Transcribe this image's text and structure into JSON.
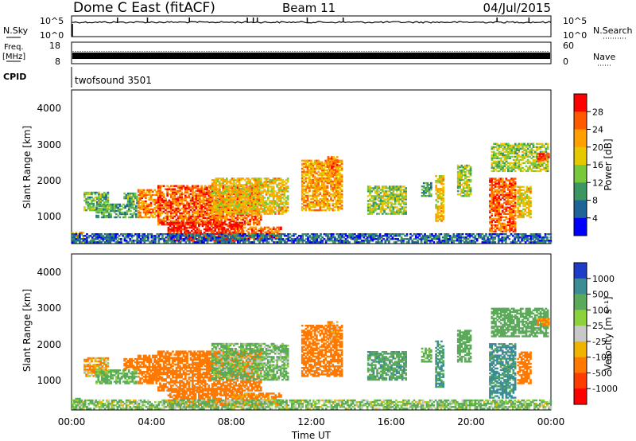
{
  "header": {
    "radar": "Dome C East (fitACF)",
    "beam": "Beam 11",
    "date": "04/Jul/2015"
  },
  "strips": {
    "nsky_label": "N.Sky",
    "nsky_ticks": [
      "10^5",
      "10^0"
    ],
    "nsearch_label": "N.Search",
    "freq_label_1": "Freq.",
    "freq_label_2": "[MHz]",
    "freq_ticks": [
      "18",
      "8"
    ],
    "nave_label": "Nave",
    "nave_ticks": [
      "60",
      "0"
    ],
    "cpid_label": "CPID",
    "cpid_value": "twofsound 3501"
  },
  "axes": {
    "ylabel": "Slant Range [km]",
    "xlabel": "Time UT",
    "yticks": [
      "4000",
      "3000",
      "2000",
      "1000"
    ],
    "xticks": [
      "00:00",
      "04:00",
      "08:00",
      "12:00",
      "16:00",
      "20:00",
      "00:00"
    ]
  },
  "colorbars": {
    "power": {
      "label": "Power [dB]",
      "ticks": [
        "28",
        "24",
        "20",
        "16",
        "12",
        "8",
        "4"
      ],
      "colors": [
        "#ff0000",
        "#ff5a00",
        "#ffa000",
        "#e6c800",
        "#78c83c",
        "#3c9664",
        "#1e6496",
        "#0000ff"
      ]
    },
    "velocity": {
      "label": "Velocity [m s⁻¹]",
      "ticks": [
        "1000",
        "500",
        "100",
        "25",
        "-25",
        "-100",
        "-500",
        "-1000"
      ],
      "colors": [
        "#1e3cc8",
        "#3c8c96",
        "#5aaa5a",
        "#8cd23c",
        "#c8c8c8",
        "#f0b400",
        "#ff7800",
        "#ff3c00",
        "#ff0000"
      ]
    }
  },
  "chart_data": [
    {
      "type": "line",
      "title": "N.Sky",
      "x_range": [
        0,
        24
      ],
      "y_scale": "log",
      "ylim": [
        1,
        100000
      ],
      "baseline": 3000,
      "spikes_x": [
        2.3,
        3.8,
        5.9,
        8.8,
        9.1,
        9.3,
        11.8,
        13.6,
        21.3,
        22.9
      ]
    },
    {
      "type": "line",
      "title": "Freq. [MHz]",
      "x_range": [
        0,
        24
      ],
      "ylim": [
        8,
        18
      ],
      "values": [
        10.5,
        11.5
      ]
    },
    {
      "type": "heatmap",
      "title": "Power [dB]",
      "xlabel": "Time UT",
      "ylabel": "Slant Range [km]",
      "x_range": [
        0,
        24
      ],
      "ylim": [
        180,
        4500
      ],
      "colorbar_range": [
        0,
        30
      ],
      "patches": [
        {
          "t": [
            0.6,
            1.8
          ],
          "r": [
            1100,
            1600
          ],
          "v": 12
        },
        {
          "t": [
            1.2,
            3.2
          ],
          "r": [
            900,
            1300
          ],
          "v": 10
        },
        {
          "t": [
            2.6,
            3.3
          ],
          "r": [
            1300,
            1600
          ],
          "v": 11
        },
        {
          "t": [
            3.3,
            4.4
          ],
          "r": [
            900,
            1700
          ],
          "v": 22
        },
        {
          "t": [
            4.3,
            9.5
          ],
          "r": [
            700,
            1800
          ],
          "v": 24
        },
        {
          "t": [
            7.0,
            10.8
          ],
          "r": [
            1000,
            2000
          ],
          "v": 18
        },
        {
          "t": [
            4.8,
            8.5
          ],
          "r": [
            250,
            750
          ],
          "v": 28
        },
        {
          "t": [
            8.0,
            10.5
          ],
          "r": [
            300,
            650
          ],
          "v": 24
        },
        {
          "t": [
            0.0,
            0.6
          ],
          "r": [
            200,
            500
          ],
          "v": 20
        },
        {
          "t": [
            11.5,
            13.5
          ],
          "r": [
            1100,
            2500
          ],
          "v": 20
        },
        {
          "t": [
            12.8,
            13.3
          ],
          "r": [
            2100,
            2600
          ],
          "v": 22
        },
        {
          "t": [
            14.8,
            16.7
          ],
          "r": [
            1000,
            1800
          ],
          "v": 14
        },
        {
          "t": [
            17.5,
            18.0
          ],
          "r": [
            1500,
            1900
          ],
          "v": 10
        },
        {
          "t": [
            18.2,
            18.6
          ],
          "r": [
            800,
            2100
          ],
          "v": 18
        },
        {
          "t": [
            19.3,
            20.0
          ],
          "r": [
            1500,
            2400
          ],
          "v": 14
        },
        {
          "t": [
            20.9,
            22.2
          ],
          "r": [
            500,
            2000
          ],
          "v": 24
        },
        {
          "t": [
            22.3,
            23.0
          ],
          "r": [
            900,
            1800
          ],
          "v": 18
        },
        {
          "t": [
            21.0,
            23.8
          ],
          "r": [
            2200,
            3000
          ],
          "v": 14
        },
        {
          "t": [
            23.3,
            23.9
          ],
          "r": [
            2500,
            2700
          ],
          "v": 26
        },
        {
          "t": [
            0.0,
            24.0
          ],
          "r": [
            200,
            450
          ],
          "v": 6
        }
      ]
    },
    {
      "type": "heatmap",
      "title": "Velocity [m s⁻¹]",
      "xlabel": "Time UT",
      "ylabel": "Slant Range [km]",
      "x_range": [
        0,
        24
      ],
      "ylim": [
        180,
        4500
      ],
      "colorbar_range": [
        -1000,
        1000
      ],
      "patches": [
        {
          "t": [
            0.6,
            1.8
          ],
          "r": [
            1100,
            1600
          ],
          "v": -100
        },
        {
          "t": [
            1.2,
            3.2
          ],
          "r": [
            900,
            1300
          ],
          "v": 200
        },
        {
          "t": [
            2.6,
            3.3
          ],
          "r": [
            1300,
            1600
          ],
          "v": -300
        },
        {
          "t": [
            3.3,
            4.4
          ],
          "r": [
            900,
            1700
          ],
          "v": -300
        },
        {
          "t": [
            4.3,
            9.5
          ],
          "r": [
            700,
            1800
          ],
          "v": -300
        },
        {
          "t": [
            7.0,
            10.8
          ],
          "r": [
            1000,
            2000
          ],
          "v": 150
        },
        {
          "t": [
            4.8,
            8.5
          ],
          "r": [
            250,
            750
          ],
          "v": -300
        },
        {
          "t": [
            8.0,
            10.5
          ],
          "r": [
            300,
            650
          ],
          "v": -200
        },
        {
          "t": [
            0.0,
            0.6
          ],
          "r": [
            200,
            500
          ],
          "v": 300
        },
        {
          "t": [
            11.5,
            13.5
          ],
          "r": [
            1100,
            2500
          ],
          "v": -300
        },
        {
          "t": [
            12.8,
            13.3
          ],
          "r": [
            2100,
            2600
          ],
          "v": -150
        },
        {
          "t": [
            14.8,
            16.7
          ],
          "r": [
            1000,
            1800
          ],
          "v": 400
        },
        {
          "t": [
            17.5,
            18.0
          ],
          "r": [
            1500,
            1900
          ],
          "v": 200
        },
        {
          "t": [
            18.2,
            18.6
          ],
          "r": [
            800,
            2100
          ],
          "v": 500
        },
        {
          "t": [
            19.3,
            20.0
          ],
          "r": [
            1500,
            2400
          ],
          "v": 300
        },
        {
          "t": [
            20.9,
            22.2
          ],
          "r": [
            500,
            2000
          ],
          "v": 600
        },
        {
          "t": [
            22.3,
            23.0
          ],
          "r": [
            900,
            1800
          ],
          "v": -300
        },
        {
          "t": [
            21.0,
            23.8
          ],
          "r": [
            2200,
            3000
          ],
          "v": 300
        },
        {
          "t": [
            23.3,
            23.9
          ],
          "r": [
            2500,
            2700
          ],
          "v": -200
        },
        {
          "t": [
            0.0,
            24.0
          ],
          "r": [
            200,
            450
          ],
          "v": 120
        }
      ]
    }
  ]
}
